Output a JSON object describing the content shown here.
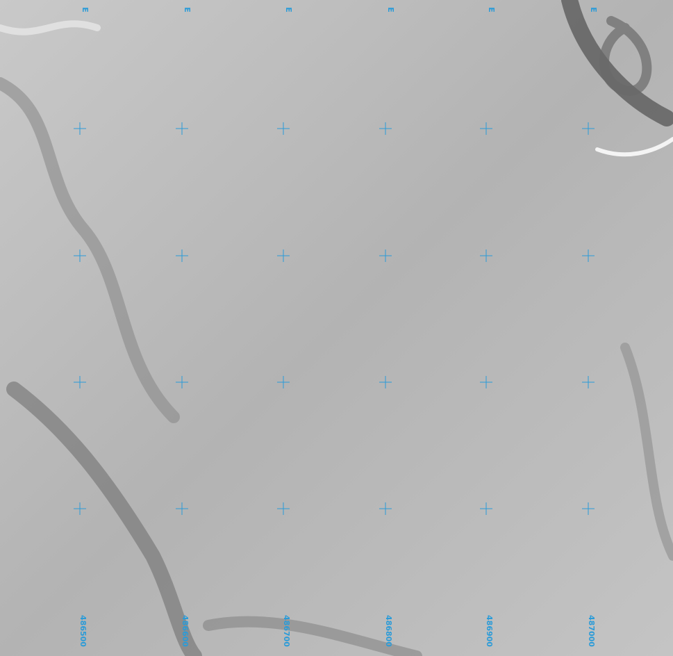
{
  "view": {
    "top_labels": [
      "E",
      "E",
      "E",
      "E",
      "E",
      "E"
    ],
    "easting_labels": [
      "486500",
      "486600",
      "486700",
      "486800",
      "486900",
      "487000"
    ]
  }
}
